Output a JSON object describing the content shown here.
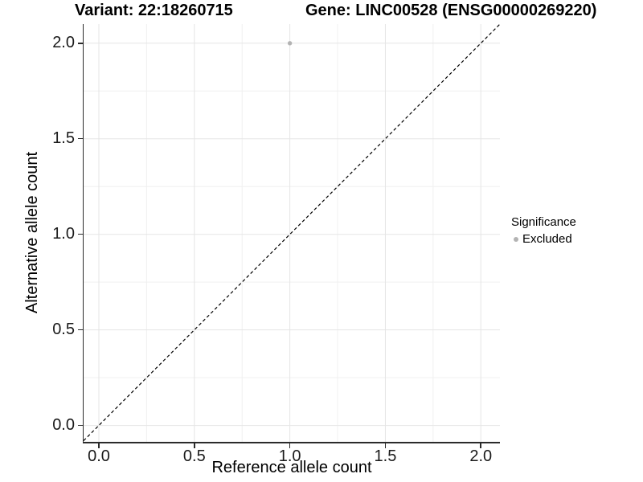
{
  "figure_name": "variant-gene-allele-count-scatter",
  "chart_data": {
    "type": "scatter",
    "title_left": "Variant: 22:18260715",
    "title_right": "Gene: LINC00528 (ENSG00000269220)",
    "xlabel": "Reference allele count",
    "ylabel": "Alternative allele count",
    "xlim": [
      -0.08,
      2.1
    ],
    "ylim": [
      -0.09,
      2.1
    ],
    "x_tick_values": [
      0,
      0.5,
      1,
      1.5,
      2
    ],
    "x_tick_labels": [
      "0.0",
      "0.5",
      "1.0",
      "1.5",
      "2.0"
    ],
    "y_tick_values": [
      0,
      0.5,
      1,
      1.5,
      2
    ],
    "y_tick_labels": [
      "0.0",
      "0.5",
      "1.0",
      "1.5",
      "2.0"
    ],
    "minor_tick_values": [
      0.25,
      0.75,
      1.25,
      1.75
    ],
    "grid": true,
    "points": [
      {
        "x": 1.0,
        "y": 2.0,
        "series": "Excluded"
      }
    ],
    "abline": {
      "slope": 1,
      "intercept": 0,
      "linetype": "dashed",
      "color": "#000000"
    },
    "legend": {
      "position": "right",
      "title": "Significance",
      "items": [
        {
          "label": "Excluded",
          "color": "#b3b3b3",
          "marker": "circle"
        }
      ]
    },
    "colors": {
      "background": "#ffffff",
      "grid_major": "#e5e5e5",
      "grid_minor": "#f0f0f0",
      "axis_line": "#2b2b2b",
      "point": "#b3b3b3",
      "text": "#000000"
    }
  }
}
